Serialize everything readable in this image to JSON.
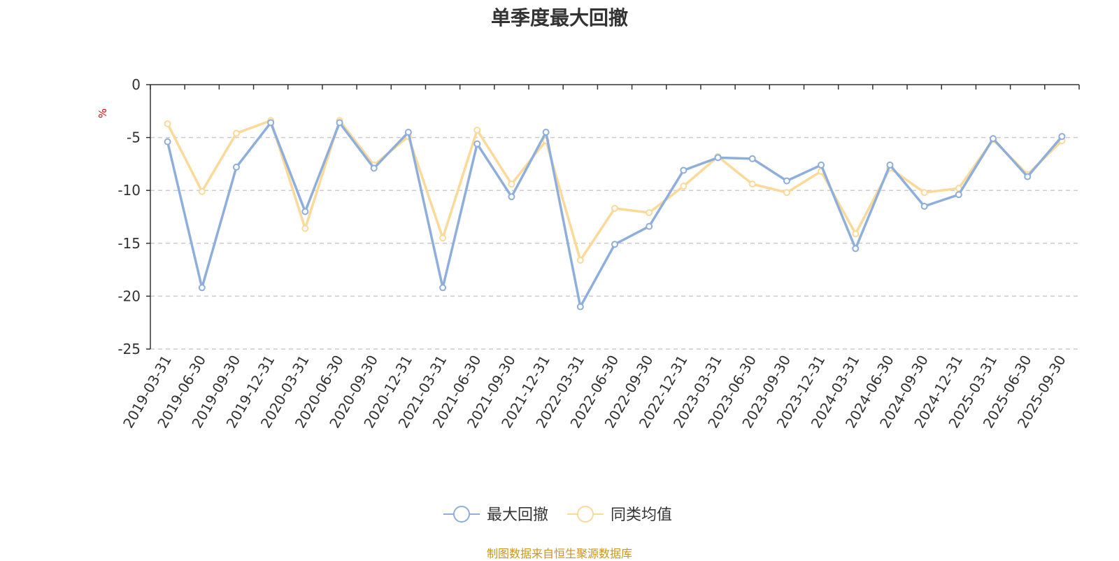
{
  "chart_data": {
    "type": "line",
    "title": "单季度最大回撤",
    "unit": "%",
    "ylim": [
      -25,
      0
    ],
    "yticks": [
      0,
      -5,
      -10,
      -15,
      -20,
      -25
    ],
    "grid": "horizontal-dashed",
    "legend_position": "bottom-center",
    "x": [
      "2019-03-31",
      "2019-06-30",
      "2019-09-30",
      "2019-12-31",
      "2020-03-31",
      "2020-06-30",
      "2020-09-30",
      "2020-12-31",
      "2021-03-31",
      "2021-06-30",
      "2021-09-30",
      "2021-12-31",
      "2022-03-31",
      "2022-06-30",
      "2022-09-30",
      "2022-12-31",
      "2023-03-31",
      "2023-06-30",
      "2023-09-30",
      "2023-12-31",
      "2024-03-31",
      "2024-06-30",
      "2024-09-30",
      "2024-12-31",
      "2025-03-31",
      "2025-06-30",
      "2025-09-30"
    ],
    "series": [
      {
        "name": "最大回撤",
        "color": "#8eaedb",
        "values": [
          -5.4,
          -19.2,
          -7.8,
          -3.6,
          -12.0,
          -3.6,
          -7.9,
          -4.5,
          -19.2,
          -5.6,
          -10.6,
          -4.5,
          -21.0,
          -15.1,
          -13.4,
          -8.1,
          -6.9,
          -7.0,
          -9.1,
          -7.6,
          -15.5,
          -7.6,
          -11.5,
          -10.4,
          -5.1,
          -8.7,
          -4.9
        ]
      },
      {
        "name": "同类均值",
        "color": "#fad999",
        "values": [
          -3.7,
          -10.1,
          -4.6,
          -3.4,
          -13.6,
          -3.4,
          -7.6,
          -4.9,
          -14.5,
          -4.3,
          -9.4,
          -5.3,
          -16.6,
          -11.7,
          -12.1,
          -9.6,
          -6.8,
          -9.4,
          -10.2,
          -8.2,
          -14.1,
          -7.9,
          -10.2,
          -9.8,
          -5.2,
          -8.5,
          -5.3
        ]
      }
    ]
  },
  "source_note": "制图数据来自恒生聚源数据库"
}
